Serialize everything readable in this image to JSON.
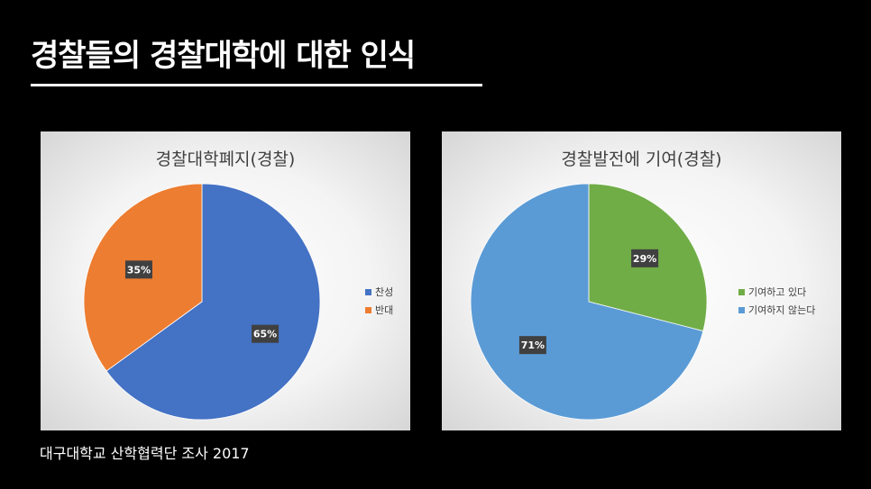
{
  "slide": {
    "title": "경찰들의 경찰대학에 대한 인식",
    "source": "대구대학교 산학협력단 조사 2017"
  },
  "chart_data": [
    {
      "type": "pie",
      "title": "경찰대학폐지(경찰)",
      "categories": [
        "찬성",
        "반대"
      ],
      "values": [
        65,
        35
      ],
      "data_labels": [
        "65%",
        "35%"
      ],
      "colors": [
        "#4472C4",
        "#ED7D31"
      ],
      "legend_position": "right"
    },
    {
      "type": "pie",
      "title": "경찰발전에 기여(경찰)",
      "categories": [
        "기여하고 있다",
        "기여하지 않는다"
      ],
      "values": [
        29,
        71
      ],
      "data_labels": [
        "29%",
        "71%"
      ],
      "colors": [
        "#70AD47",
        "#5B9BD5"
      ],
      "legend_position": "right"
    }
  ]
}
